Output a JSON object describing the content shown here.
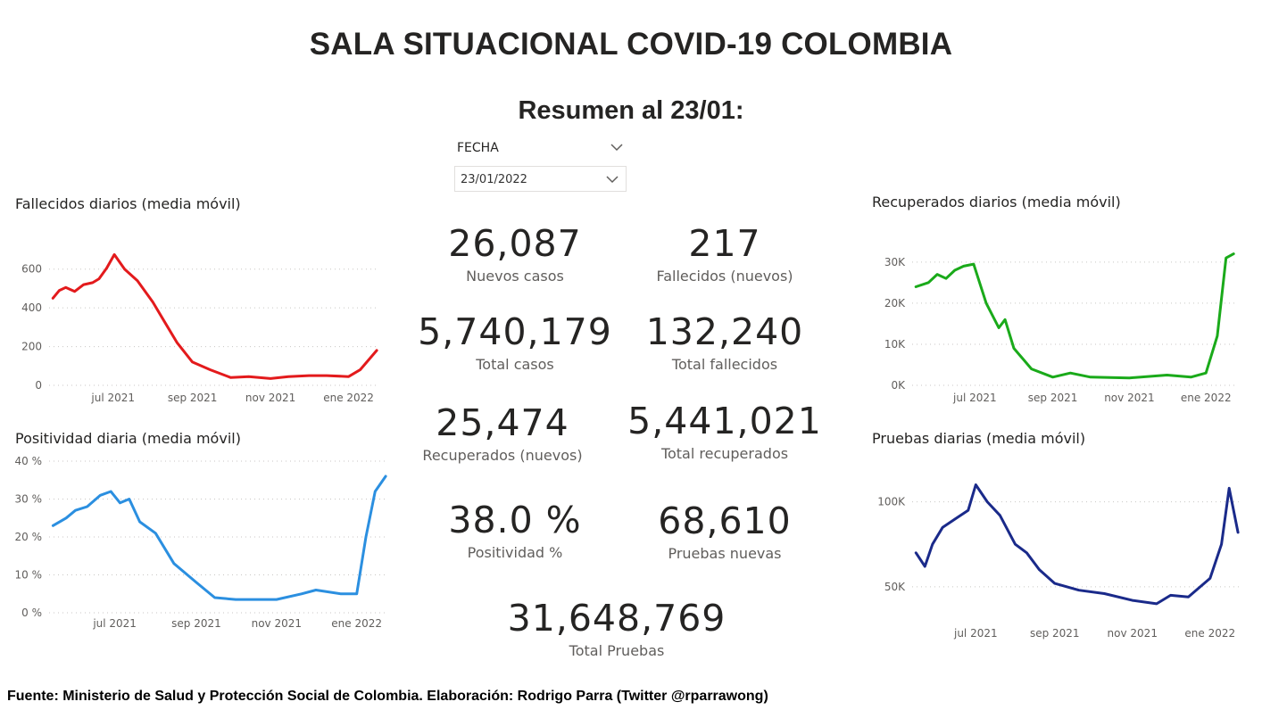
{
  "header": {
    "title": "SALA SITUACIONAL COVID-19 COLOMBIA",
    "subtitle": "Resumen al 23/01:"
  },
  "slicer": {
    "label": "FECHA",
    "value": "23/01/2022",
    "chevron_icon": "chevron-down-icon"
  },
  "kpis": {
    "nuevos_casos": {
      "value": "26,087",
      "label": "Nuevos casos"
    },
    "fallecidos_nuevos": {
      "value": "217",
      "label": "Fallecidos (nuevos)"
    },
    "total_casos": {
      "value": "5,740,179",
      "label": "Total casos"
    },
    "total_fallecidos": {
      "value": "132,240",
      "label": "Total fallecidos"
    },
    "recuperados_nuevos": {
      "value": "25,474",
      "label": "Recuperados (nuevos)"
    },
    "total_recuperados": {
      "value": "5,441,021",
      "label": "Total recuperados"
    },
    "positividad": {
      "value": "38.0 %",
      "label": "Positividad %"
    },
    "pruebas_nuevas": {
      "value": "68,610",
      "label": "Pruebas nuevas"
    },
    "total_pruebas": {
      "value": "31,648,769",
      "label": "Total Pruebas"
    }
  },
  "footer": "Fuente: Ministerio de Salud y Protección Social de Colombia. Elaboración: Rodrigo Parra (Twitter @rparrawong)",
  "chart_data": [
    {
      "id": "fallecidos",
      "type": "line",
      "title": "Fallecidos diarios (media móvil)",
      "color": "#e31a1c",
      "xlabel": "",
      "ylabel": "",
      "x_ticks": [
        "jul 2021",
        "sep 2021",
        "nov 2021",
        "ene 2022"
      ],
      "y_ticks": [
        "0",
        "200",
        "400",
        "600"
      ],
      "ylim": [
        0,
        700
      ],
      "grid": true,
      "x": [
        "2021-05-15",
        "2021-05-20",
        "2021-05-25",
        "2021-06-01",
        "2021-06-08",
        "2021-06-15",
        "2021-06-20",
        "2021-06-26",
        "2021-07-02",
        "2021-07-10",
        "2021-07-20",
        "2021-08-01",
        "2021-08-10",
        "2021-08-20",
        "2021-09-01",
        "2021-09-15",
        "2021-10-01",
        "2021-10-15",
        "2021-11-01",
        "2021-11-15",
        "2021-12-01",
        "2021-12-15",
        "2022-01-01",
        "2022-01-10",
        "2022-01-23"
      ],
      "values": [
        450,
        490,
        505,
        485,
        520,
        530,
        550,
        605,
        675,
        600,
        540,
        430,
        330,
        220,
        120,
        80,
        40,
        45,
        35,
        45,
        50,
        50,
        45,
        80,
        180
      ]
    },
    {
      "id": "recuperados",
      "type": "line",
      "title": "Recuperados diarios (media móvil)",
      "color": "#1aaa1a",
      "xlabel": "",
      "ylabel": "",
      "x_ticks": [
        "jul 2021",
        "sep 2021",
        "nov 2021",
        "ene 2022"
      ],
      "y_ticks": [
        "0K",
        "10K",
        "20K",
        "30K"
      ],
      "ylim": [
        0,
        33000
      ],
      "grid": true,
      "x": [
        "2021-05-15",
        "2021-05-25",
        "2021-06-01",
        "2021-06-08",
        "2021-06-15",
        "2021-06-22",
        "2021-06-30",
        "2021-07-10",
        "2021-07-20",
        "2021-07-25",
        "2021-08-01",
        "2021-08-15",
        "2021-09-01",
        "2021-09-15",
        "2021-10-01",
        "2021-11-01",
        "2021-12-01",
        "2021-12-20",
        "2022-01-01",
        "2022-01-10",
        "2022-01-17",
        "2022-01-23"
      ],
      "values": [
        24000,
        25000,
        27000,
        26000,
        28000,
        29000,
        29500,
        20000,
        14000,
        16000,
        9000,
        4000,
        2000,
        3000,
        2000,
        1800,
        2500,
        2000,
        3000,
        12000,
        31000,
        32000
      ]
    },
    {
      "id": "positividad",
      "type": "line",
      "title": "Positividad diaria (media móvil)",
      "color": "#2b8fe0",
      "xlabel": "",
      "ylabel": "",
      "x_ticks": [
        "jul 2021",
        "sep 2021",
        "nov 2021",
        "ene 2022"
      ],
      "y_ticks": [
        "0 %",
        "10 %",
        "20 %",
        "30 %",
        "40 %"
      ],
      "ylim": [
        0,
        40
      ],
      "grid": true,
      "x": [
        "2021-05-15",
        "2021-05-25",
        "2021-06-01",
        "2021-06-10",
        "2021-06-20",
        "2021-06-28",
        "2021-07-05",
        "2021-07-12",
        "2021-07-20",
        "2021-08-01",
        "2021-08-15",
        "2021-09-01",
        "2021-09-15",
        "2021-10-01",
        "2021-10-20",
        "2021-11-01",
        "2021-11-20",
        "2021-12-01",
        "2021-12-20",
        "2022-01-01",
        "2022-01-08",
        "2022-01-15",
        "2022-01-23"
      ],
      "values": [
        23,
        25,
        27,
        28,
        31,
        32,
        29,
        30,
        24,
        21,
        13,
        8,
        4,
        3.5,
        3.5,
        3.5,
        5,
        6,
        5,
        5,
        20,
        32,
        36
      ]
    },
    {
      "id": "pruebas",
      "type": "line",
      "title": "Pruebas diarias (media móvil)",
      "color": "#1a2a8a",
      "xlabel": "",
      "ylabel": "",
      "x_ticks": [
        "jul 2021",
        "sep 2021",
        "nov 2021",
        "ene 2022"
      ],
      "y_ticks": [
        "50K",
        "100K"
      ],
      "ylim": [
        30000,
        115000
      ],
      "grid": true,
      "x": [
        "2021-05-15",
        "2021-05-22",
        "2021-05-28",
        "2021-06-05",
        "2021-06-15",
        "2021-06-25",
        "2021-07-01",
        "2021-07-10",
        "2021-07-20",
        "2021-08-01",
        "2021-08-10",
        "2021-08-20",
        "2021-09-01",
        "2021-09-20",
        "2021-10-10",
        "2021-11-01",
        "2021-11-20",
        "2021-12-01",
        "2021-12-15",
        "2022-01-01",
        "2022-01-10",
        "2022-01-16",
        "2022-01-23"
      ],
      "values": [
        70000,
        62000,
        75000,
        85000,
        90000,
        95000,
        110000,
        100000,
        92000,
        75000,
        70000,
        60000,
        52000,
        48000,
        46000,
        42000,
        40000,
        45000,
        44000,
        55000,
        75000,
        108000,
        82000
      ]
    }
  ]
}
